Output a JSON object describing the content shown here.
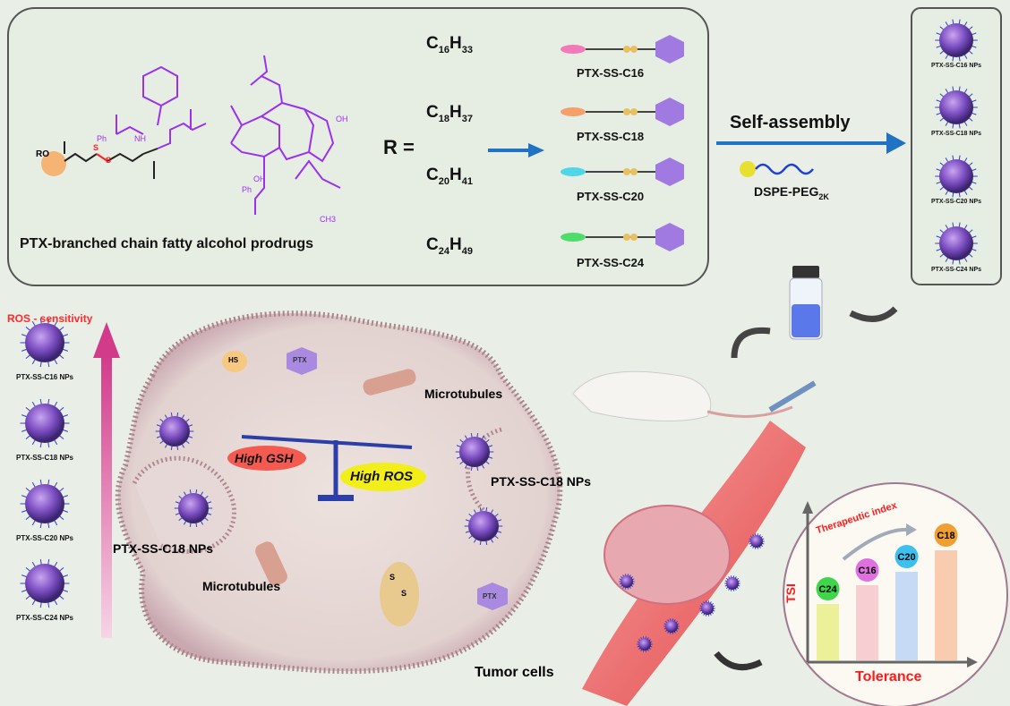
{
  "top_panel": {
    "caption": "PTX-branched chain fatty alcohol prodrugs",
    "r_label": "R =",
    "structure_labels": {
      "ro": "RO",
      "s1": "S",
      "s2": "S",
      "ph1": "Ph",
      "nh": "NH",
      "oh1": "OH",
      "oh2": "OH",
      "ph2": "Ph",
      "ch3": "CH3"
    },
    "formulas": [
      {
        "c": "C",
        "cn": "16",
        "h": "H",
        "hn": "33"
      },
      {
        "c": "C",
        "cn": "18",
        "h": "H",
        "hn": "37"
      },
      {
        "c": "C",
        "cn": "20",
        "h": "H",
        "hn": "41"
      },
      {
        "c": "C",
        "cn": "24",
        "h": "H",
        "hn": "49"
      }
    ],
    "prodrugs": [
      {
        "name": "PTX-SS-C16",
        "tail_color": "#f27ab8"
      },
      {
        "name": "PTX-SS-C18",
        "tail_color": "#f5a06a"
      },
      {
        "name": "PTX-SS-C20",
        "tail_color": "#4fd6e8"
      },
      {
        "name": "PTX-SS-C24",
        "tail_color": "#4fdc6a"
      }
    ]
  },
  "self_assembly": {
    "label": "Self-assembly",
    "lipid": "DSPE-PEG",
    "lipid_sub": "2K"
  },
  "np_column": [
    "PTX-SS-C16 NPs",
    "PTX-SS-C18 NPs",
    "PTX-SS-C20 NPs",
    "PTX-SS-C24 NPs"
  ],
  "ros_column": {
    "title": "ROS - sensitivity",
    "items": [
      "PTX-SS-C16 NPs",
      "PTX-SS-C18 NPs",
      "PTX-SS-C20 NPs",
      "PTX-SS-C24 NPs"
    ]
  },
  "cell": {
    "hs": "HS",
    "ptx1": "PTX",
    "ptx2": "PTX",
    "microtubules1": "Microtubules",
    "microtubules2": "Microtubules",
    "high_gsh": "High GSH",
    "high_ros": "High ROS",
    "np_label_right": "PTX-SS-C18 NPs",
    "np_label_left": "PTX-SS-C18 NPs",
    "s1": "S",
    "s2": "S",
    "tumor_cells": "Tumor cells"
  },
  "inset": {
    "title": "Therapeutic index",
    "ylabel": "TSI",
    "xlabel": "Tolerance",
    "bars": [
      {
        "label": "C24",
        "relative_tsi": 0.42,
        "ball": "#3ed64a",
        "bar": "#e8ee8a"
      },
      {
        "label": "C16",
        "relative_tsi": 0.56,
        "ball": "#e070e0",
        "bar": "#f6c8cc"
      },
      {
        "label": "C20",
        "relative_tsi": 0.66,
        "ball": "#3cc0ee",
        "bar": "#bcd4f6"
      },
      {
        "label": "C18",
        "relative_tsi": 0.82,
        "ball": "#f0a030",
        "bar": "#f8c4a4"
      }
    ]
  },
  "colors": {
    "ptx": "#9b30f0",
    "disulfide": "#ff2020",
    "arrow_blue": "#1f72c4",
    "accent_red": "#ff1a1a"
  }
}
